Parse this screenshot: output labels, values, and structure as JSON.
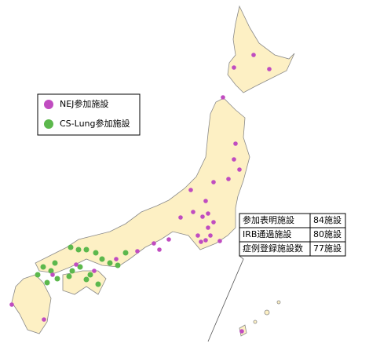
{
  "legend": {
    "items": [
      {
        "label": "NEJ参加施設",
        "color": "#c04cc0"
      },
      {
        "label": "CS-Lung参加施設",
        "color": "#5cb84c"
      }
    ]
  },
  "table": {
    "rows": [
      [
        "参加表明施設",
        "84施設"
      ],
      [
        "IRB通過施設",
        "80施設"
      ],
      [
        "症例登録施設数",
        "77施設"
      ]
    ]
  }
}
